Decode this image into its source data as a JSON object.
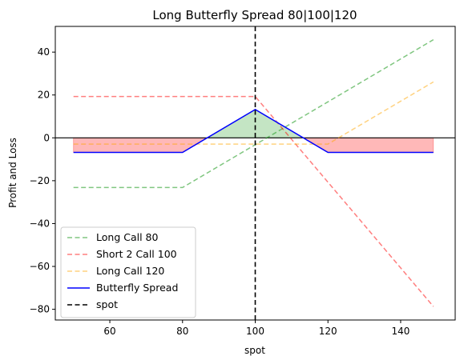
{
  "chart_data": {
    "type": "line",
    "title": "Long Butterfly Spread 80|100|120",
    "xlabel": "spot",
    "ylabel": "Profit and Loss",
    "xlim": [
      45,
      155
    ],
    "ylim": [
      -85,
      52
    ],
    "xticks": [
      60,
      80,
      100,
      120,
      140
    ],
    "yticks": [
      -80,
      -60,
      -40,
      -20,
      0,
      20,
      40
    ],
    "grid": false,
    "legend_position": "lower-left",
    "series": [
      {
        "name": "Long Call 80",
        "color": "#2ca02c",
        "style": "dashed",
        "opacity": 0.6,
        "x": [
          50,
          80,
          149
        ],
        "y": [
          -23.2,
          -23.2,
          45.8
        ]
      },
      {
        "name": "Short 2 Call 100",
        "color": "#ff0000",
        "style": "dashed",
        "opacity": 0.5,
        "x": [
          50,
          100,
          149
        ],
        "y": [
          19.3,
          19.3,
          -78.7
        ]
      },
      {
        "name": "Long Call 120",
        "color": "#ffa500",
        "style": "dashed",
        "opacity": 0.5,
        "x": [
          50,
          120,
          149
        ],
        "y": [
          -2.9,
          -2.9,
          26.1
        ]
      },
      {
        "name": "Butterfly Spread",
        "color": "#0000ff",
        "style": "solid",
        "opacity": 1,
        "x": [
          50,
          80,
          100,
          120,
          149
        ],
        "y": [
          -6.8,
          -6.8,
          13.2,
          -6.8,
          -6.8
        ]
      }
    ],
    "reference_lines": [
      {
        "name": "spot",
        "orientation": "vertical",
        "value": 100,
        "color": "#000000",
        "style": "dashed"
      },
      {
        "orientation": "horizontal",
        "value": 0,
        "color": "#000000",
        "style": "solid"
      }
    ],
    "fill_profit_color": "#2ca02c",
    "fill_loss_color": "#ff0000"
  }
}
